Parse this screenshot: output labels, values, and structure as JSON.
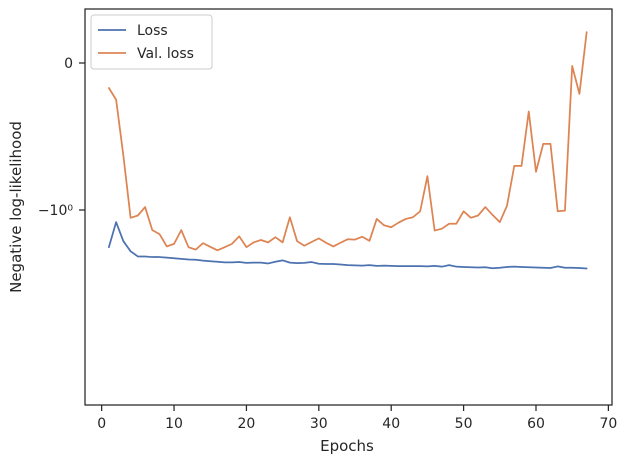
{
  "chart_data": {
    "type": "line",
    "title": "",
    "xlabel": "Epochs",
    "ylabel": "Negative log-likelihood",
    "yscale": "symlog",
    "xlim": [
      -2.3,
      70.5
    ],
    "xticks": [
      {
        "value": 0,
        "label": "0"
      },
      {
        "value": 10,
        "label": "10"
      },
      {
        "value": 20,
        "label": "20"
      },
      {
        "value": 30,
        "label": "30"
      },
      {
        "value": 40,
        "label": "40"
      },
      {
        "value": 50,
        "label": "50"
      },
      {
        "value": 60,
        "label": "60"
      },
      {
        "value": 70,
        "label": "70"
      }
    ],
    "yticks": [
      {
        "value": 0,
        "label": "0"
      },
      {
        "value": -1,
        "label": "−10⁰"
      }
    ],
    "grid": false,
    "legend_position": "top-left",
    "series": [
      {
        "name": "Loss",
        "color": "#4c72b0",
        "x": [
          1,
          2,
          3,
          4,
          5,
          6,
          7,
          8,
          9,
          10,
          11,
          12,
          13,
          14,
          15,
          16,
          17,
          18,
          19,
          20,
          21,
          22,
          23,
          24,
          25,
          26,
          27,
          28,
          29,
          30,
          31,
          32,
          33,
          34,
          35,
          36,
          37,
          38,
          39,
          40,
          41,
          42,
          43,
          44,
          45,
          46,
          47,
          48,
          49,
          50,
          51,
          52,
          53,
          54,
          55,
          56,
          57,
          58,
          59,
          60,
          61,
          62,
          63,
          64,
          65,
          66,
          67
        ],
        "values": [
          -1.79,
          -1.21,
          -1.63,
          -1.91,
          -2.07,
          -2.07,
          -2.09,
          -2.09,
          -2.11,
          -2.13,
          -2.15,
          -2.17,
          -2.18,
          -2.21,
          -2.23,
          -2.25,
          -2.27,
          -2.27,
          -2.26,
          -2.29,
          -2.28,
          -2.28,
          -2.31,
          -2.25,
          -2.2,
          -2.28,
          -2.3,
          -2.29,
          -2.26,
          -2.32,
          -2.33,
          -2.33,
          -2.35,
          -2.37,
          -2.38,
          -2.39,
          -2.37,
          -2.4,
          -2.39,
          -2.4,
          -2.41,
          -2.41,
          -2.41,
          -2.41,
          -2.42,
          -2.4,
          -2.43,
          -2.37,
          -2.43,
          -2.44,
          -2.45,
          -2.46,
          -2.45,
          -2.49,
          -2.47,
          -2.44,
          -2.43,
          -2.44,
          -2.45,
          -2.46,
          -2.47,
          -2.48,
          -2.42,
          -2.47,
          -2.47,
          -2.48,
          -2.5
        ]
      },
      {
        "name": "Val. loss",
        "color": "#dd8452",
        "x": [
          1,
          2,
          3,
          4,
          5,
          6,
          7,
          8,
          9,
          10,
          11,
          12,
          13,
          14,
          15,
          16,
          17,
          18,
          19,
          20,
          21,
          22,
          23,
          24,
          25,
          26,
          27,
          28,
          29,
          30,
          31,
          32,
          33,
          34,
          35,
          36,
          37,
          38,
          39,
          40,
          41,
          42,
          43,
          44,
          45,
          46,
          47,
          48,
          49,
          50,
          51,
          52,
          53,
          54,
          55,
          56,
          57,
          58,
          59,
          60,
          61,
          62,
          63,
          64,
          65,
          66,
          67
        ],
        "values": [
          -0.17,
          -0.25,
          -0.63,
          -1.13,
          -1.09,
          -0.98,
          -1.37,
          -1.46,
          -1.77,
          -1.7,
          -1.37,
          -1.79,
          -1.86,
          -1.68,
          -1.78,
          -1.88,
          -1.79,
          -1.7,
          -1.51,
          -1.79,
          -1.66,
          -1.6,
          -1.66,
          -1.53,
          -1.66,
          -1.12,
          -1.63,
          -1.75,
          -1.65,
          -1.56,
          -1.67,
          -1.77,
          -1.67,
          -1.58,
          -1.59,
          -1.52,
          -1.62,
          -1.15,
          -1.27,
          -1.31,
          -1.22,
          -1.15,
          -1.12,
          -1.02,
          -0.77,
          -1.38,
          -1.34,
          -1.24,
          -1.24,
          -1.02,
          -1.13,
          -1.09,
          -0.98,
          -1.08,
          -1.21,
          -0.97,
          -0.7,
          -0.7,
          -0.33,
          -0.74,
          -0.55,
          -0.55,
          -1.02,
          -1.01,
          -0.02,
          -0.21,
          0.21
        ]
      }
    ]
  }
}
